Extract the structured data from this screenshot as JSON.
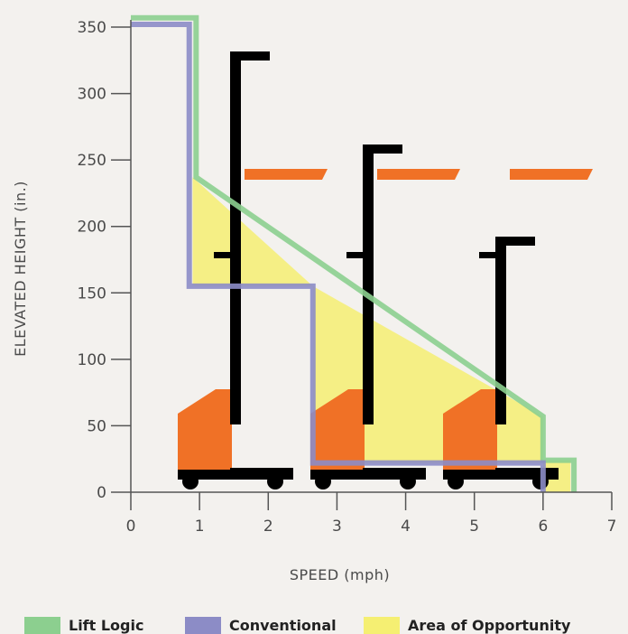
{
  "chart_data": {
    "type": "line",
    "xlabel": "SPEED (mph)",
    "ylabel": "ELEVATED HEIGHT (in.)",
    "xlim": [
      0,
      7
    ],
    "ylim": [
      0,
      350
    ],
    "xticks": [
      "0",
      "1",
      "2",
      "3",
      "4",
      "5",
      "6",
      "7"
    ],
    "yticks": [
      "0",
      "50",
      "100",
      "150",
      "200",
      "250",
      "300",
      "350"
    ],
    "series": [
      {
        "name": "Lift Logic",
        "color": "#8ccf8f",
        "x": [
          0,
          0.95,
          0.95,
          6.0,
          6.0,
          6.45,
          6.45
        ],
        "y": [
          357,
          357,
          237,
          57,
          24,
          24,
          0
        ]
      },
      {
        "name": "Conventional",
        "color": "#8c8cc6",
        "x": [
          0,
          0.85,
          0.85,
          2.65,
          2.65,
          6.0,
          6.0
        ],
        "y": [
          352,
          352,
          155,
          155,
          22,
          22,
          0
        ]
      }
    ],
    "area": {
      "name": "Area of Opportunity",
      "color": "#f5ef72",
      "x": [
        0.9,
        0.9,
        2.65,
        2.65,
        6.0,
        6.0,
        6.4,
        6.4,
        6.0,
        6.0,
        2.65,
        2.65
      ],
      "y": [
        155,
        237,
        155,
        155,
        57,
        24,
        24,
        0,
        0,
        22,
        22,
        155
      ]
    },
    "grid": false,
    "legend_position": "bottom"
  },
  "colors": {
    "forklift_body": "#f07126",
    "forklift_mast": "#000000",
    "background": "#f3f1ee"
  },
  "icons": [
    "forklift-icon",
    "forklift-icon",
    "forklift-icon"
  ]
}
